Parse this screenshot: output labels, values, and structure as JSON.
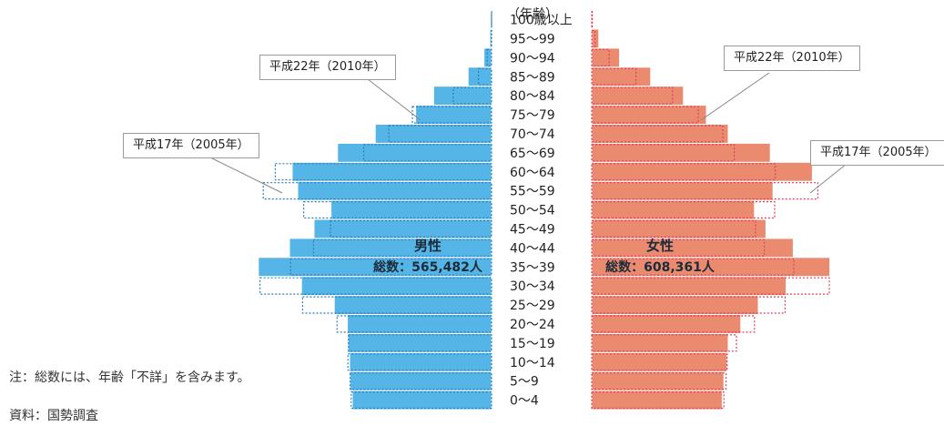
{
  "chart_data": {
    "type": "bar",
    "axis_title": "（年齢）",
    "categories": [
      "0〜4",
      "5〜9",
      "10〜14",
      "15〜19",
      "20〜24",
      "25〜29",
      "30〜34",
      "35〜39",
      "40〜44",
      "45〜49",
      "50〜54",
      "55〜59",
      "60〜64",
      "65〜69",
      "70〜74",
      "75〜79",
      "80〜84",
      "85〜89",
      "90〜94",
      "95〜99",
      "100歳以上"
    ],
    "series": [
      {
        "name": "男性",
        "edition": "平成22年（2010年）",
        "values": [
          25500,
          25900,
          26000,
          26300,
          26400,
          28800,
          34800,
          42700,
          37000,
          32500,
          29400,
          35500,
          36500,
          28200,
          21300,
          13900,
          10600,
          4300,
          1400,
          300,
          40
        ]
      },
      {
        "name": "男性",
        "edition": "平成17年（2005年）",
        "values": [
          25700,
          25900,
          26300,
          26200,
          28300,
          34600,
          42400,
          36800,
          32600,
          29500,
          34400,
          41800,
          39600,
          23400,
          18800,
          14500,
          7000,
          2400,
          800,
          100,
          15
        ]
      },
      {
        "name": "女性",
        "edition": "平成22年（2010年）",
        "values": [
          23900,
          24200,
          24800,
          25000,
          27300,
          30500,
          35600,
          43600,
          36900,
          31900,
          29800,
          33200,
          40400,
          32700,
          25000,
          21000,
          16800,
          10800,
          5100,
          1300,
          200
        ]
      },
      {
        "name": "女性",
        "edition": "平成17年（2005年）",
        "values": [
          24200,
          24600,
          24800,
          26500,
          29800,
          35400,
          43500,
          37000,
          31600,
          30000,
          33500,
          41400,
          33600,
          26100,
          24000,
          19500,
          14800,
          8100,
          3200,
          600,
          100
        ]
      }
    ],
    "labels": {
      "male_name": "男性",
      "male_total": "総数：565,482人",
      "female_name": "女性",
      "female_total": "総数：608,361人"
    },
    "callouts": {
      "left_2010": "平成22年（2010年）",
      "left_2005": "平成17年（2005年）",
      "right_2010": "平成22年（2010年）",
      "right_2005": "平成17年（2005年）"
    },
    "colors": {
      "male_bar": "#55b5e6",
      "female_bar": "#ea8b6f",
      "male_outline": "#2e7cb8",
      "female_outline": "#e23e5b",
      "bar_edge": "#ffffff"
    }
  },
  "notes": {
    "note": "注：総数には、年齢「不詳」を含みます。",
    "source": "資料：国勢調査"
  }
}
